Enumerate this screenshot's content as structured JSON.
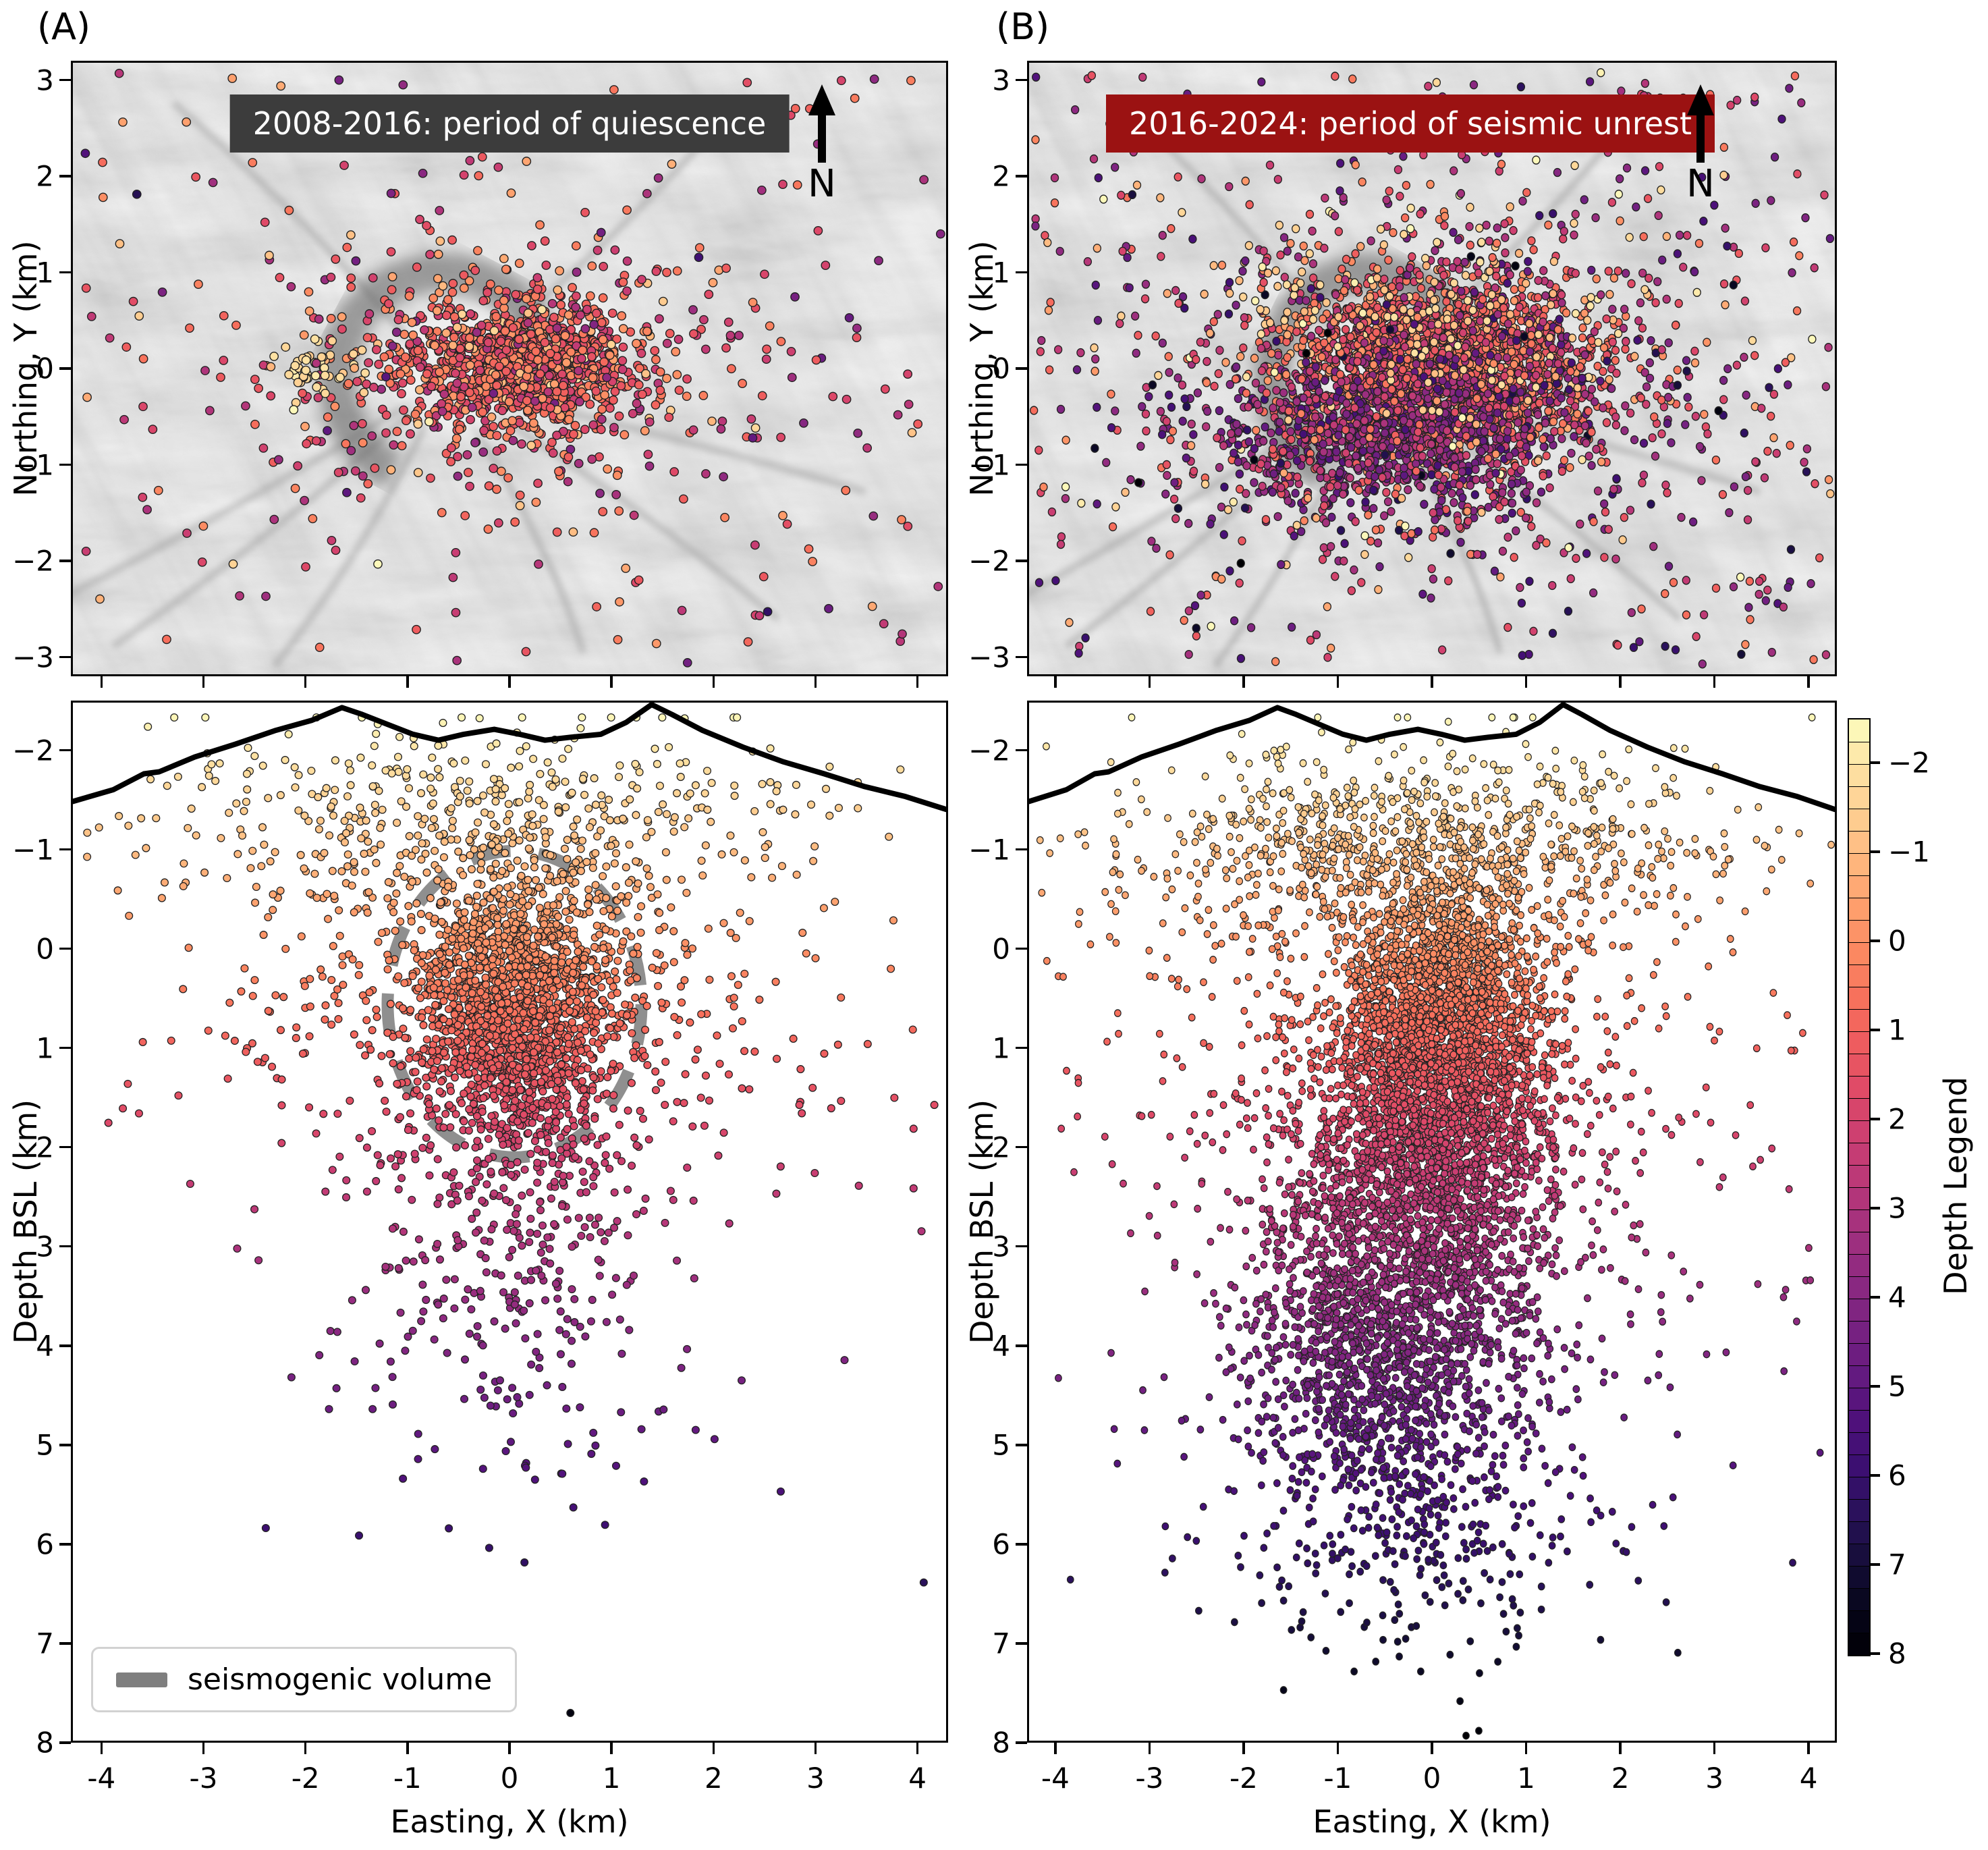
{
  "north_label": "N",
  "panel_letters": {
    "a": "(A)",
    "b": "(B)"
  },
  "chart_data": {
    "type": "scatter",
    "description": "Earthquake hypocenters at a volcano: map views over hillshade topography (top) and depth cross-sections (bottom), colored by depth below sea level.",
    "colormap": {
      "name": "magma-reversed-by-depth",
      "vmin": -2.5,
      "vmax": 8,
      "stops": [
        "#000004",
        "#07061c",
        "#150e38",
        "#29115a",
        "#3b0f70",
        "#4f117b",
        "#641a80",
        "#782281",
        "#8c2981",
        "#a1307e",
        "#b73779",
        "#ca3e72",
        "#de4968",
        "#ed5a5f",
        "#f7705c",
        "#fb8861",
        "#fe9f6d",
        "#feb77e",
        "#fecf92",
        "#fde2a3",
        "#fcfdbf"
      ]
    },
    "colorbar": {
      "label": "Depth Legend",
      "ticks": [
        "−2",
        "−1",
        "0",
        "1",
        "2",
        "3",
        "4",
        "5",
        "6",
        "7",
        "8"
      ],
      "tick_values": [
        -2,
        -1,
        0,
        1,
        2,
        3,
        4,
        5,
        6,
        7,
        8
      ],
      "segments": 42
    },
    "panels": [
      {
        "id": "map_a",
        "title": "2008-2016: period of quiescence",
        "title_bg": "#3c3c3c",
        "title_fg": "#ffffff",
        "ylabel": "Northing, Y (km)",
        "x_range": [
          -4.3,
          4.3
        ],
        "y_range": [
          -3.2,
          3.2
        ],
        "ytick_labels": [
          "3",
          "2",
          "1",
          "0",
          "−1",
          "−2",
          "−3"
        ],
        "ytick_values": [
          3,
          2,
          1,
          0,
          -1,
          -2,
          -3
        ],
        "xtick_values": [
          -4,
          -3,
          -2,
          -1,
          0,
          1,
          2,
          3,
          4
        ],
        "seed": 11,
        "point_radius": 6.2,
        "clusters": [
          {
            "n": 950,
            "cx": 0.15,
            "cy": 0.05,
            "sx": 0.55,
            "sy": 0.33,
            "dmean": 0.9,
            "dsd": 0.9
          },
          {
            "n": 420,
            "cx": -0.1,
            "cy": -0.05,
            "sx": 1.25,
            "sy": 0.7,
            "dmean": 1.3,
            "dsd": 1.3
          },
          {
            "n": 45,
            "cx": -1.85,
            "cy": 0.05,
            "sx": 0.2,
            "sy": 0.14,
            "dmean": -1.7,
            "dsd": 0.25
          },
          {
            "n": 230,
            "uniform": true,
            "x0": -4.25,
            "x1": 4.25,
            "y0": -3.1,
            "y1": 3.1,
            "dmean": 1.6,
            "dsd": 1.6
          }
        ]
      },
      {
        "id": "map_b",
        "title": "2016-2024: period of seismic unrest",
        "title_bg": "#9b1212",
        "title_fg": "#ffffff",
        "ylabel": "Northing, Y (km)",
        "x_range": [
          -4.3,
          4.3
        ],
        "y_range": [
          -3.2,
          3.2
        ],
        "ytick_labels": [
          "3",
          "2",
          "1",
          "0",
          "−1",
          "−2",
          "−3"
        ],
        "ytick_values": [
          3,
          2,
          1,
          0,
          -1,
          -2,
          -3
        ],
        "xtick_values": [
          -4,
          -3,
          -2,
          -1,
          0,
          1,
          2,
          3,
          4
        ],
        "seed": 22,
        "point_radius": 6.0,
        "clusters": [
          {
            "n": 2000,
            "cx": 0.1,
            "cy": 0.05,
            "sx": 0.8,
            "sy": 0.45,
            "dmean": 1.0,
            "dsd": 1.0
          },
          {
            "n": 900,
            "cx": -0.45,
            "cy": -0.7,
            "sx": 0.95,
            "sy": 0.42,
            "dmean": 3.6,
            "dsd": 1.1
          },
          {
            "n": 800,
            "cx": 0.0,
            "cy": -0.15,
            "sx": 1.6,
            "sy": 0.95,
            "dmean": 2.2,
            "dsd": 1.9
          },
          {
            "n": 130,
            "cx": -0.2,
            "cy": 0.6,
            "sx": 1.1,
            "sy": 0.5,
            "dmean": -1.4,
            "dsd": 0.4
          },
          {
            "n": 470,
            "uniform": true,
            "x0": -4.25,
            "x1": 4.25,
            "y0": -3.1,
            "y1": 3.1,
            "dmean": 2.6,
            "dsd": 2.4
          }
        ]
      },
      {
        "id": "xsec_a",
        "ylabel": "Depth BSL (km)",
        "xlabel": "Easting, X (km)",
        "x_range": [
          -4.3,
          4.3
        ],
        "depth_range": [
          -2.5,
          8
        ],
        "ytick_labels": [
          "−2",
          "−1",
          "0",
          "1",
          "2",
          "3",
          "4",
          "5",
          "6",
          "7",
          "8"
        ],
        "ytick_values": [
          -2,
          -1,
          0,
          1,
          2,
          3,
          4,
          5,
          6,
          7,
          8
        ],
        "xtick_labels": [
          "-4",
          "-3",
          "-2",
          "-1",
          "0",
          "1",
          "2",
          "3",
          "4"
        ],
        "xtick_values": [
          -4,
          -3,
          -2,
          -1,
          0,
          1,
          2,
          3,
          4
        ],
        "legend_label": "seismogenic volume",
        "legend_swatch_color": "#7f7f7f",
        "ellipse": {
          "cx": 0.05,
          "cd": 0.55,
          "rx": 1.25,
          "rd": 1.55,
          "color": "#8f8f8f"
        },
        "seed": 33,
        "point_radius": 5.4,
        "clusters": [
          {
            "n": 1700,
            "cx": 0.05,
            "sx": 0.5,
            "dmean": 0.6,
            "dsd": 0.72
          },
          {
            "n": 650,
            "cx": 0.0,
            "sx": 1.45,
            "dmean": 0.3,
            "dsd": 1.15
          },
          {
            "n": 330,
            "cx": -0.4,
            "sx": 1.7,
            "dmean": -1.35,
            "dsd": 0.45
          },
          {
            "n": 260,
            "cx": 0.1,
            "sx": 0.7,
            "dmean": 2.9,
            "dsd": 0.85
          },
          {
            "n": 60,
            "cx": 0.2,
            "sx": 1.1,
            "dmean": 4.6,
            "dsd": 0.8
          },
          {
            "n": 55,
            "uniform": true,
            "x0": -4.2,
            "x1": 4.2,
            "d0": -1.9,
            "d1": 3.6
          }
        ],
        "extra_points": [
          [
            -2.4,
            5.85
          ],
          [
            0.52,
            5.3
          ],
          [
            1.05,
            5.22
          ],
          [
            2.02,
            4.95
          ],
          [
            0.6,
            7.72
          ],
          [
            4.08,
            6.4
          ],
          [
            -0.2,
            6.05
          ],
          [
            1.3,
            4.85
          ],
          [
            -1.15,
            4.6
          ],
          [
            -3.95,
            1.75
          ],
          [
            3.3,
            4.15
          ]
        ]
      },
      {
        "id": "xsec_b",
        "ylabel": "Depth BSL (km)",
        "xlabel": "Easting, X (km)",
        "x_range": [
          -4.3,
          4.3
        ],
        "depth_range": [
          -2.5,
          8
        ],
        "ytick_labels": [
          "−2",
          "−1",
          "0",
          "1",
          "2",
          "3",
          "4",
          "5",
          "6",
          "7",
          "8"
        ],
        "ytick_values": [
          -2,
          -1,
          0,
          1,
          2,
          3,
          4,
          5,
          6,
          7,
          8
        ],
        "xtick_labels": [
          "-4",
          "-3",
          "-2",
          "-1",
          "0",
          "1",
          "2",
          "3",
          "4"
        ],
        "xtick_values": [
          -4,
          -3,
          -2,
          -1,
          0,
          1,
          2,
          3,
          4
        ],
        "seed": 44,
        "point_radius": 5.2,
        "clusters": [
          {
            "n": 850,
            "cx": -0.2,
            "sx": 1.65,
            "dmean": -1.05,
            "dsd": 0.5
          },
          {
            "n": 2200,
            "cx": 0.1,
            "sx": 0.55,
            "dmean": 0.75,
            "dsd": 0.75
          },
          {
            "n": 1300,
            "cx": -0.05,
            "sx": 0.72,
            "dmean": 2.1,
            "dsd": 0.8
          },
          {
            "n": 950,
            "cx": -0.4,
            "sx": 0.85,
            "dmean": 3.4,
            "dsd": 0.8
          },
          {
            "n": 480,
            "cx": -0.75,
            "sx": 0.6,
            "dmean": 4.35,
            "dsd": 0.7
          },
          {
            "n": 430,
            "cx": -0.15,
            "sx": 1.0,
            "dmean": 5.6,
            "dsd": 0.8
          },
          {
            "n": 550,
            "cx": 0.0,
            "sx": 1.85,
            "dmean": 1.6,
            "dsd": 1.6
          },
          {
            "n": 85,
            "uniform": true,
            "x0": -4.2,
            "x1": 4.2,
            "d0": -1.6,
            "d1": 5.2
          }
        ],
        "extra_points": [
          [
            0.3,
            7.6
          ],
          [
            -0.6,
            7.2
          ],
          [
            0.9,
            7.05
          ],
          [
            -1.5,
            6.88
          ],
          [
            2.5,
            6.6
          ],
          [
            -2.85,
            6.3
          ],
          [
            3.85,
            6.2
          ],
          [
            1.8,
            6.98
          ],
          [
            -0.12,
            7.3
          ],
          [
            0.5,
            7.9
          ]
        ]
      }
    ],
    "topo_profile_km": [
      [
        -4.3,
        -1.5
      ],
      [
        -3.9,
        -1.62
      ],
      [
        -3.6,
        -1.78
      ],
      [
        -3.45,
        -1.8
      ],
      [
        -3.1,
        -1.95
      ],
      [
        -2.7,
        -2.08
      ],
      [
        -2.3,
        -2.22
      ],
      [
        -1.95,
        -2.32
      ],
      [
        -1.65,
        -2.45
      ],
      [
        -1.45,
        -2.38
      ],
      [
        -1.2,
        -2.28
      ],
      [
        -0.95,
        -2.18
      ],
      [
        -0.7,
        -2.12
      ],
      [
        -0.45,
        -2.18
      ],
      [
        -0.15,
        -2.23
      ],
      [
        0.1,
        -2.18
      ],
      [
        0.35,
        -2.12
      ],
      [
        0.6,
        -2.15
      ],
      [
        0.9,
        -2.18
      ],
      [
        1.15,
        -2.3
      ],
      [
        1.4,
        -2.48
      ],
      [
        1.6,
        -2.38
      ],
      [
        1.9,
        -2.22
      ],
      [
        2.3,
        -2.05
      ],
      [
        2.7,
        -1.9
      ],
      [
        3.1,
        -1.78
      ],
      [
        3.5,
        -1.65
      ],
      [
        3.9,
        -1.55
      ],
      [
        4.3,
        -1.42
      ]
    ]
  }
}
